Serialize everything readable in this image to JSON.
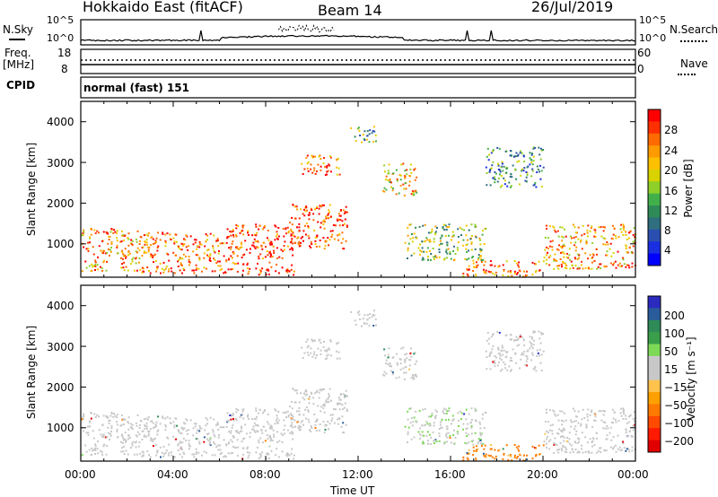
{
  "header": {
    "title": "Hokkaido East (fitACF)",
    "beam": "Beam 14",
    "date": "26/Jul/2019"
  },
  "top_panels": {
    "nsky_label": "N.Sky",
    "nsearch_label": "N.Search",
    "noise_ticks_left": [
      "10^5",
      "10^0"
    ],
    "noise_ticks_right": [
      "10^5",
      "10^0"
    ],
    "freq_label_1": "Freq.",
    "freq_label_2": "[MHz]",
    "freq_ticks": [
      "18",
      "8"
    ],
    "nave_label": "Nave",
    "nave_ticks": [
      "60",
      "0"
    ],
    "cpid_label": "CPID",
    "cpid_value": "normal (fast) 151"
  },
  "colorbars": {
    "power": {
      "label": "Power [dB]",
      "ticks": [
        "28",
        "24",
        "20",
        "16",
        "12",
        "8",
        "4"
      ],
      "colors": [
        "#ff0000",
        "#ff3000",
        "#ff6a00",
        "#ff9a00",
        "#ffc000",
        "#d7d200",
        "#8ecf2a",
        "#42b04a",
        "#2e8b57",
        "#2f6f7f",
        "#2a4fb0",
        "#1a2fe0",
        "#0000ff"
      ]
    },
    "velocity": {
      "label": "Velocity [m s⁻¹]",
      "ticks": [
        "200",
        "100",
        "50",
        "15",
        "−15",
        "−50",
        "−100",
        "−200"
      ],
      "colors": [
        "#2b2bbf",
        "#2a5c9c",
        "#2e8b57",
        "#3a9f4a",
        "#7ed957",
        "#c8c8c8",
        "#c8c8c8",
        "#ffc34d",
        "#ffa000",
        "#ff7a00",
        "#ff4a00",
        "#ff1a00",
        "#e00000"
      ]
    }
  },
  "axes": {
    "ylabel": "Slant Range [km]",
    "xlabel": "Time UT",
    "x_ticks": [
      "00:00",
      "04:00",
      "08:00",
      "12:00",
      "16:00",
      "20:00",
      "00:00"
    ],
    "y_ticks": [
      "1000",
      "2000",
      "3000",
      "4000"
    ]
  },
  "chart_data": {
    "type": "heatmap",
    "xlim_hours": [
      0,
      24
    ],
    "ylim_km": [
      180,
      4500
    ],
    "panels": [
      "Power",
      "Velocity"
    ],
    "scatter_regions": [
      {
        "t": [
          0.0,
          2.6
        ],
        "r": [
          350,
          1400
        ],
        "power": 22,
        "velocity": 0
      },
      {
        "t": [
          2.6,
          6.2
        ],
        "r": [
          300,
          1300
        ],
        "power": 24,
        "velocity": 0
      },
      {
        "t": [
          6.2,
          9.2
        ],
        "r": [
          250,
          1500
        ],
        "power": 26,
        "velocity": 0
      },
      {
        "t": [
          9.0,
          11.5
        ],
        "r": [
          900,
          2000
        ],
        "power": 26,
        "velocity": 0
      },
      {
        "t": [
          9.5,
          11.2
        ],
        "r": [
          2700,
          3200
        ],
        "power": 24,
        "velocity": 0
      },
      {
        "t": [
          13.0,
          14.5
        ],
        "r": [
          2200,
          3000
        ],
        "power": 20,
        "velocity": 0
      },
      {
        "t": [
          11.6,
          12.8
        ],
        "r": [
          3500,
          3900
        ],
        "power": 14,
        "velocity": 0
      },
      {
        "t": [
          14.0,
          17.5
        ],
        "r": [
          600,
          1500
        ],
        "power": 16,
        "velocity": 10
      },
      {
        "t": [
          16.5,
          20.0
        ],
        "r": [
          200,
          600
        ],
        "power": 24,
        "velocity": -60
      },
      {
        "t": [
          20.0,
          24.0
        ],
        "r": [
          400,
          1500
        ],
        "power": 22,
        "velocity": 0
      },
      {
        "t": [
          17.5,
          20.0
        ],
        "r": [
          2400,
          3400
        ],
        "power": 12,
        "velocity": 0
      }
    ]
  }
}
